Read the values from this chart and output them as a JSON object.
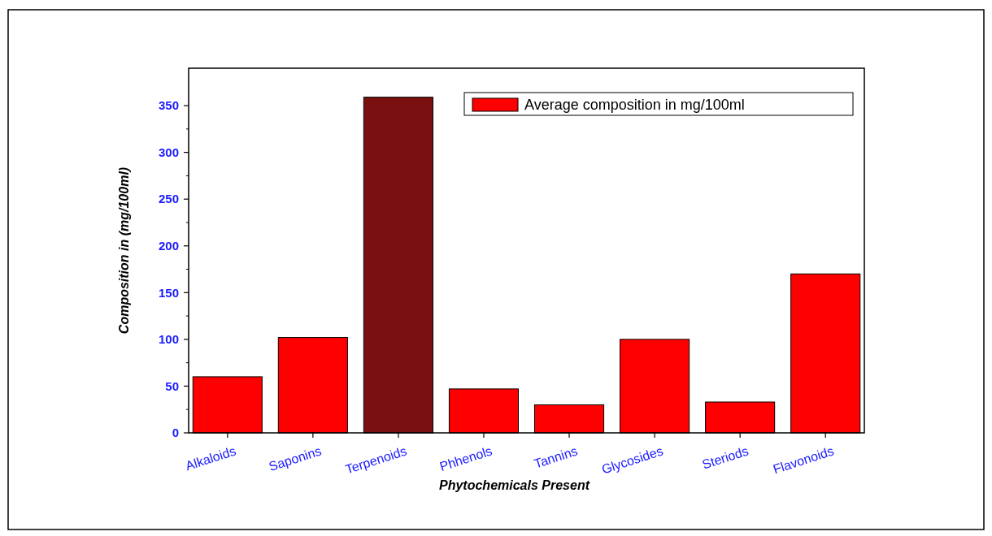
{
  "chart_data": {
    "type": "bar",
    "xlabel": "Phytochemicals Present",
    "ylabel": "Composition in (mg/100ml)",
    "categories": [
      "Alkaloids",
      "Saponins",
      "Terpenoids",
      "Phhenols",
      "Tannins",
      "Glycosides",
      "Steriods",
      "Flavonoids"
    ],
    "series": [
      {
        "name": "Average composition in mg/100ml",
        "color": "#ff0000",
        "values": [
          60,
          102,
          359,
          47,
          30,
          100,
          33,
          170
        ],
        "colors": [
          "#ff0000",
          "#ff0000",
          "#7a1010",
          "#ff0000",
          "#ff0000",
          "#ff0000",
          "#ff0000",
          "#ff0000"
        ]
      }
    ],
    "ylim": [
      0,
      390
    ],
    "yticks": [
      0,
      50,
      100,
      150,
      200,
      250,
      300,
      350
    ],
    "grid": false,
    "legend": "top right"
  }
}
